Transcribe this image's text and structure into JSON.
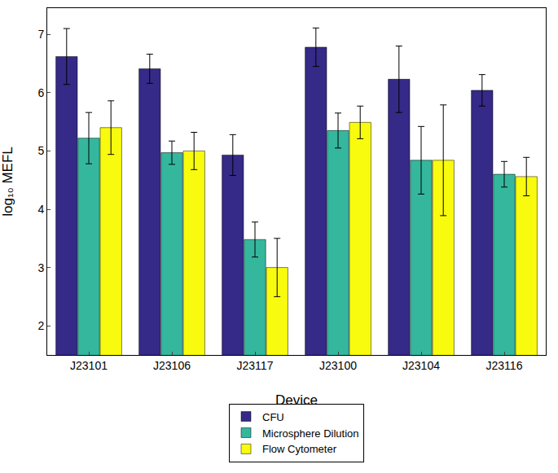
{
  "chart_data": {
    "type": "bar",
    "x_label": "Device",
    "y_label": "log₁₀ MEFL",
    "categories": [
      "J23101",
      "J23106",
      "J23117",
      "J23100",
      "J23104",
      "J23116"
    ],
    "series": [
      {
        "name": "CFU",
        "color": "#352a87",
        "values": [
          6.62,
          6.41,
          4.93,
          6.78,
          6.23,
          6.04
        ],
        "errors": [
          0.48,
          0.25,
          0.35,
          0.33,
          0.57,
          0.27
        ]
      },
      {
        "name": "Microsphere Dilution",
        "color": "#35b79e",
        "values": [
          5.22,
          4.97,
          3.48,
          5.35,
          4.84,
          4.6
        ],
        "errors": [
          0.44,
          0.2,
          0.3,
          0.3,
          0.58,
          0.22
        ]
      },
      {
        "name": "Flow Cytometer",
        "color": "#f9fb0e",
        "values": [
          5.4,
          5.0,
          3.0,
          5.49,
          4.84,
          4.56
        ],
        "errors": [
          0.46,
          0.32,
          0.5,
          0.28,
          0.95,
          0.33
        ]
      }
    ],
    "ylim": [
      1.5,
      7.45
    ],
    "yticks": [
      2,
      3,
      4,
      5,
      6,
      7
    ],
    "grid": false,
    "legend": "bottom"
  }
}
